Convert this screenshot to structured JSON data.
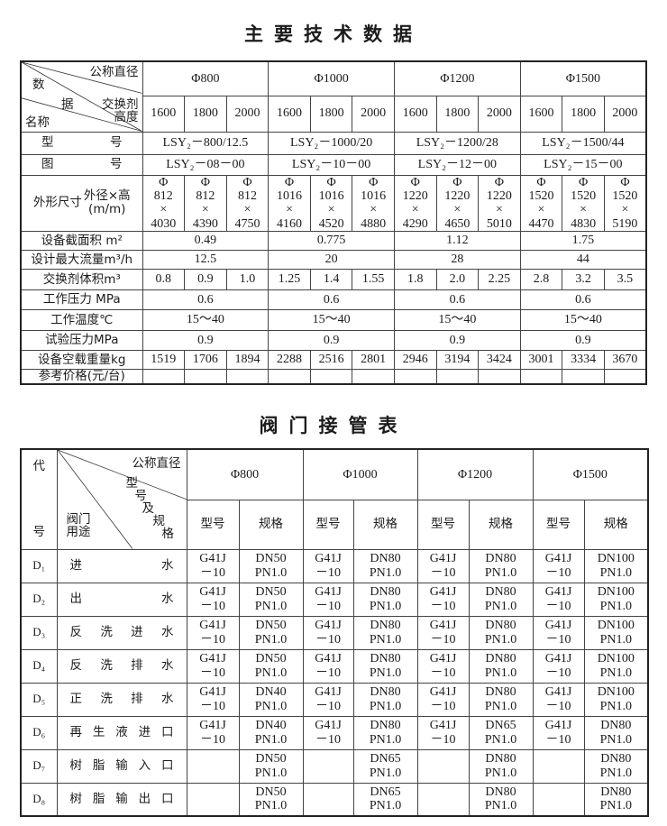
{
  "table1": {
    "title": "主要技术数据",
    "corner": {
      "diameter": "公称直径",
      "height": "交换剂\n高度",
      "data1": "数",
      "data2": "据",
      "name": "名称"
    },
    "diameters": [
      "Φ800",
      "Φ1000",
      "Φ1200",
      "Φ1500"
    ],
    "heights": [
      "1600",
      "1800",
      "2000",
      "1600",
      "1800",
      "2000",
      "1600",
      "1800",
      "2000",
      "1600",
      "1800",
      "2000"
    ],
    "rows": [
      {
        "label": "型号",
        "spread": true,
        "group": [
          "LSY₂－800/12.5",
          "LSY₂－1000/20",
          "LSY₂－1200/28",
          "LSY₂－1500/44"
        ]
      },
      {
        "label": "图号",
        "spread": true,
        "group": [
          "LSY₂－08－00",
          "LSY₂－10－00",
          "LSY₂－12－00",
          "LSY₂－15－00"
        ]
      },
      {
        "label": "外形尺寸",
        "sublabel": "外径×高\n(m/m)",
        "cells": [
          "Φ\n812\n×\n4030",
          "Φ\n812\n×\n4390",
          "Φ\n812\n×\n4750",
          "Φ\n1016\n×\n4160",
          "Φ\n1016\n×\n4520",
          "Φ\n1016\n×\n4880",
          "Φ\n1220\n×\n4290",
          "Φ\n1220\n×\n4650",
          "Φ\n1220\n×\n5010",
          "Φ\n1520\n×\n4470",
          "Φ\n1520\n×\n4830",
          "Φ\n1520\n×\n5190"
        ]
      },
      {
        "label": "设备截面积 m²",
        "group": [
          "0.49",
          "0.775",
          "1.12",
          "1.75"
        ]
      },
      {
        "label": "设计最大流量m³/h",
        "group": [
          "12.5",
          "20",
          "28",
          "44"
        ]
      },
      {
        "label": "交换剂体积m³",
        "cells": [
          "0.8",
          "0.9",
          "1.0",
          "1.25",
          "1.4",
          "1.55",
          "1.8",
          "2.0",
          "2.25",
          "2.8",
          "3.2",
          "3.5"
        ]
      },
      {
        "label": "工作压力 MPa",
        "group": [
          "0.6",
          "0.6",
          "0.6",
          "0.6"
        ]
      },
      {
        "label": "工作温度℃",
        "group": [
          "15～40",
          "15～40",
          "15～40",
          "15～40"
        ]
      },
      {
        "label": "试验压力MPa",
        "group": [
          "0.9",
          "0.9",
          "0.9",
          "0.9"
        ]
      },
      {
        "label": "设备空载重量kg",
        "cells": [
          "1519",
          "1706",
          "1894",
          "2288",
          "2516",
          "2801",
          "2946",
          "3194",
          "3424",
          "3001",
          "3334",
          "3670"
        ]
      },
      {
        "label": "参考价格(元/台)",
        "cells": [
          "",
          "",
          "",
          "",
          "",
          "",
          "",
          "",
          "",
          "",
          "",
          ""
        ]
      }
    ]
  },
  "table2": {
    "title": "阀门接管表",
    "code_header": {
      "top": "代",
      "bottom": "号"
    },
    "corner": {
      "diameter": "公称直径",
      "model_spec": [
        "型",
        "号",
        "及",
        "规",
        "格"
      ],
      "usage": "阀门\n用途"
    },
    "diameters": [
      "Φ800",
      "Φ1000",
      "Φ1200",
      "Φ1500"
    ],
    "subheaders": [
      "型号",
      "规格",
      "型号",
      "规格",
      "型号",
      "规格",
      "型号",
      "规格"
    ],
    "rows": [
      {
        "code": "D₁",
        "usage": "进水",
        "cells": [
          "G41J\n－10",
          "DN50\nPN1.0",
          "G41J\n－10",
          "DN80\nPN1.0",
          "G41J\n－10",
          "DN80\nPN1.0",
          "G41J\n－10",
          "DN100\nPN1.0"
        ]
      },
      {
        "code": "D₂",
        "usage": "出水",
        "cells": [
          "G41J\n－10",
          "DN50\nPN1.0",
          "G41J\n－10",
          "DN80\nPN1.0",
          "G41J\n－10",
          "DN80\nPN1.0",
          "G41J\n－10",
          "DN100\nPN1.0"
        ]
      },
      {
        "code": "D₃",
        "usage": "反洗进水",
        "cells": [
          "G41J\n－10",
          "DN50\nPN1.0",
          "G41J\n－10",
          "DN80\nPN1.0",
          "G41J\n－10",
          "DN80\nPN1.0",
          "G41J\n－10",
          "DN100\nPN1.0"
        ]
      },
      {
        "code": "D₄",
        "usage": "反洗排水",
        "cells": [
          "G41J\n－10",
          "DN50\nPN1.0",
          "G41J\n－10",
          "DN80\nPN1.0",
          "G41J\n－10",
          "DN80\nPN1.0",
          "G41J\n－10",
          "DN100\nPN1.0"
        ]
      },
      {
        "code": "D₅",
        "usage": "正洗排水",
        "cells": [
          "G41J\n－10",
          "DN40\nPN1.0",
          "G41J\n－10",
          "DN80\nPN1.0",
          "G41J\n－10",
          "DN80\nPN1.0",
          "G41J\n－10",
          "DN100\nPN1.0"
        ]
      },
      {
        "code": "D₆",
        "usage": "再生液进口",
        "cells": [
          "G41J\n－10",
          "DN40\nPN1.0",
          "G41J\n－10",
          "DN80\nPN1.0",
          "G41J\n－10",
          "DN65\nPN1.0",
          "G41J\n－10",
          "DN80\nPN1.0"
        ]
      },
      {
        "code": "D₇",
        "usage": "树脂输入口",
        "cells": [
          "",
          "DN50\nPN1.0",
          "",
          "DN65\nPN1.0",
          "",
          "DN80\nPN1.0",
          "",
          "DN80\nPN1.0"
        ]
      },
      {
        "code": "D₈",
        "usage": "树脂输出口",
        "cells": [
          "",
          "DN50\nPN1.0",
          "",
          "DN65\nPN1.0",
          "",
          "DN80\nPN1.0",
          "",
          "DN80\nPN1.0"
        ]
      }
    ]
  }
}
